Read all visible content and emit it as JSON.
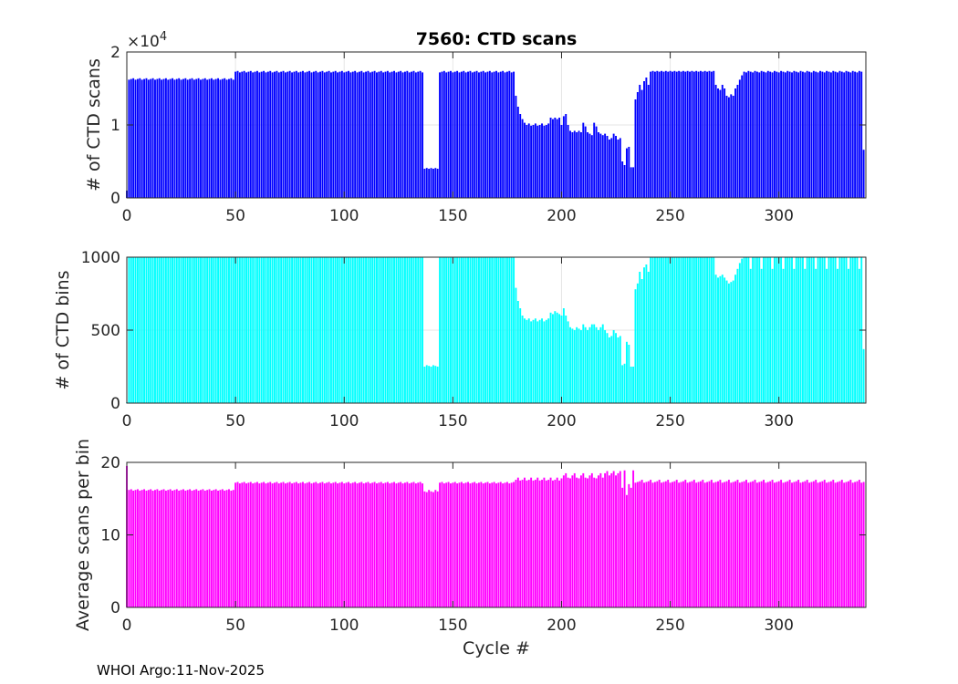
{
  "footer": "WHOI Argo:11-Nov-2025",
  "chart_data": [
    {
      "type": "bar",
      "title": "7560: CTD scans",
      "xlabel": "",
      "ylabel": "# of CTD scans",
      "exponent_label": "×10",
      "exponent_power": "4",
      "xlim": [
        0,
        340
      ],
      "ylim": [
        0,
        2
      ],
      "xticks": [
        "0",
        "50",
        "100",
        "150",
        "200",
        "250",
        "300"
      ],
      "yticks": [
        "0",
        "1",
        "2"
      ],
      "color": "#0000ff",
      "grid": true,
      "series": [
        {
          "name": "# of CTD scans (×10^4)",
          "segments": [
            {
              "from": 0,
              "to": 0,
              "values": [
                0.1
              ]
            },
            {
              "from": 1,
              "to": 49,
              "values": [
                1.62,
                1.63,
                1.64
              ]
            },
            {
              "from": 50,
              "to": 136,
              "values": [
                1.73,
                1.74,
                1.72
              ]
            },
            {
              "from": 137,
              "to": 143,
              "values": [
                0.4,
                0.41
              ]
            },
            {
              "from": 144,
              "to": 178,
              "values": [
                1.72,
                1.73,
                1.74
              ]
            },
            {
              "from": 179,
              "to": 179,
              "values": [
                1.4
              ]
            },
            {
              "from": 180,
              "to": 183,
              "values": [
                1.25,
                1.15,
                1.08,
                1.03
              ]
            },
            {
              "from": 184,
              "to": 194,
              "values": [
                1.0,
                1.02,
                0.99
              ]
            },
            {
              "from": 195,
              "to": 199,
              "values": [
                1.1,
                1.08
              ]
            },
            {
              "from": 200,
              "to": 203,
              "values": [
                1.0,
                1.12,
                1.15,
                1.0
              ]
            },
            {
              "from": 204,
              "to": 209,
              "values": [
                0.92,
                0.9
              ]
            },
            {
              "from": 210,
              "to": 219,
              "values": [
                1.03,
                0.98,
                0.9,
                0.88,
                0.86
              ]
            },
            {
              "from": 220,
              "to": 227,
              "values": [
                0.88,
                0.85,
                0.8,
                0.82
              ]
            },
            {
              "from": 228,
              "to": 231,
              "values": [
                0.5,
                0.45,
                0.68,
                0.7
              ]
            },
            {
              "from": 232,
              "to": 233,
              "values": [
                0.42
              ]
            },
            {
              "from": 234,
              "to": 234,
              "values": [
                1.35
              ]
            },
            {
              "from": 235,
              "to": 237,
              "values": [
                1.45,
                1.55,
                1.48
              ]
            },
            {
              "from": 238,
              "to": 240,
              "values": [
                1.6,
                1.65,
                1.55
              ]
            },
            {
              "from": 241,
              "to": 270,
              "values": [
                1.73,
                1.74
              ]
            },
            {
              "from": 271,
              "to": 275,
              "values": [
                1.55,
                1.5,
                1.48
              ]
            },
            {
              "from": 276,
              "to": 279,
              "values": [
                1.4,
                1.38,
                1.42
              ]
            },
            {
              "from": 280,
              "to": 283,
              "values": [
                1.5,
                1.55,
                1.62,
                1.68
              ]
            },
            {
              "from": 284,
              "to": 338,
              "values": [
                1.73,
                1.72,
                1.74
              ]
            },
            {
              "from": 339,
              "to": 339,
              "values": [
                0.66
              ]
            }
          ]
        }
      ]
    },
    {
      "type": "bar",
      "title": "",
      "xlabel": "",
      "ylabel": "# of CTD bins",
      "xlim": [
        0,
        340
      ],
      "ylim": [
        0,
        1000
      ],
      "xticks": [
        "0",
        "50",
        "100",
        "150",
        "200",
        "250",
        "300"
      ],
      "yticks": [
        "0",
        "500",
        "1000"
      ],
      "color": "#00ffff",
      "grid": true,
      "series": [
        {
          "name": "# of CTD bins",
          "segments": [
            {
              "from": 0,
              "to": 0,
              "values": [
                5
              ]
            },
            {
              "from": 1,
              "to": 136,
              "values": [
                1000
              ]
            },
            {
              "from": 137,
              "to": 143,
              "values": [
                250,
                260,
                255
              ]
            },
            {
              "from": 144,
              "to": 178,
              "values": [
                1000
              ]
            },
            {
              "from": 179,
              "to": 179,
              "values": [
                790
              ]
            },
            {
              "from": 180,
              "to": 183,
              "values": [
                700,
                650,
                600,
                580
              ]
            },
            {
              "from": 184,
              "to": 194,
              "values": [
                570,
                580,
                560
              ]
            },
            {
              "from": 195,
              "to": 199,
              "values": [
                620,
                610,
                630
              ]
            },
            {
              "from": 200,
              "to": 203,
              "values": [
                600,
                650,
                600,
                560
              ]
            },
            {
              "from": 204,
              "to": 209,
              "values": [
                520,
                510,
                500
              ]
            },
            {
              "from": 210,
              "to": 219,
              "values": [
                540,
                520,
                500,
                520,
                540
              ]
            },
            {
              "from": 220,
              "to": 227,
              "values": [
                500,
                480,
                450,
                460
              ]
            },
            {
              "from": 228,
              "to": 231,
              "values": [
                260,
                270,
                420,
                400
              ]
            },
            {
              "from": 232,
              "to": 233,
              "values": [
                250
              ]
            },
            {
              "from": 234,
              "to": 234,
              "values": [
                780
              ]
            },
            {
              "from": 235,
              "to": 237,
              "values": [
                820,
                900,
                850
              ]
            },
            {
              "from": 238,
              "to": 240,
              "values": [
                930,
                950,
                900
              ]
            },
            {
              "from": 241,
              "to": 270,
              "values": [
                1000
              ]
            },
            {
              "from": 271,
              "to": 275,
              "values": [
                880,
                860,
                870
              ]
            },
            {
              "from": 276,
              "to": 279,
              "values": [
                840,
                820,
                830
              ]
            },
            {
              "from": 280,
              "to": 283,
              "values": [
                880,
                920,
                960,
                990
              ]
            },
            {
              "from": 284,
              "to": 338,
              "values": [
                1000,
                1000,
                1000,
                920,
                1000
              ]
            },
            {
              "from": 339,
              "to": 339,
              "values": [
                370
              ]
            }
          ]
        }
      ]
    },
    {
      "type": "bar",
      "title": "",
      "xlabel": "Cycle #",
      "ylabel": "Average scans per bin",
      "xlim": [
        0,
        340
      ],
      "ylim": [
        0,
        20
      ],
      "xticks": [
        "0",
        "50",
        "100",
        "150",
        "200",
        "250",
        "300"
      ],
      "yticks": [
        "0",
        "10",
        "20"
      ],
      "color": "#ff00ff",
      "grid": false,
      "series": [
        {
          "name": "Average scans per bin",
          "segments": [
            {
              "from": 0,
              "to": 0,
              "values": [
                19.5
              ]
            },
            {
              "from": 1,
              "to": 49,
              "values": [
                16.2,
                16.3,
                16.1
              ]
            },
            {
              "from": 50,
              "to": 136,
              "values": [
                17.2,
                17.3,
                17.1
              ]
            },
            {
              "from": 137,
              "to": 143,
              "values": [
                16.0,
                15.9,
                16.2
              ]
            },
            {
              "from": 144,
              "to": 178,
              "values": [
                17.2,
                17.3,
                17.1
              ]
            },
            {
              "from": 179,
              "to": 199,
              "values": [
                17.6,
                17.9,
                17.5
              ]
            },
            {
              "from": 200,
              "to": 219,
              "values": [
                17.8,
                18.2,
                18.5,
                17.9
              ]
            },
            {
              "from": 220,
              "to": 227,
              "values": [
                18.5,
                18.8,
                18.2
              ]
            },
            {
              "from": 228,
              "to": 233,
              "values": [
                16.5,
                18.9,
                15.5,
                17.0
              ]
            },
            {
              "from": 234,
              "to": 339,
              "values": [
                17.2,
                17.3,
                17.4,
                17.6
              ]
            }
          ]
        }
      ]
    }
  ]
}
